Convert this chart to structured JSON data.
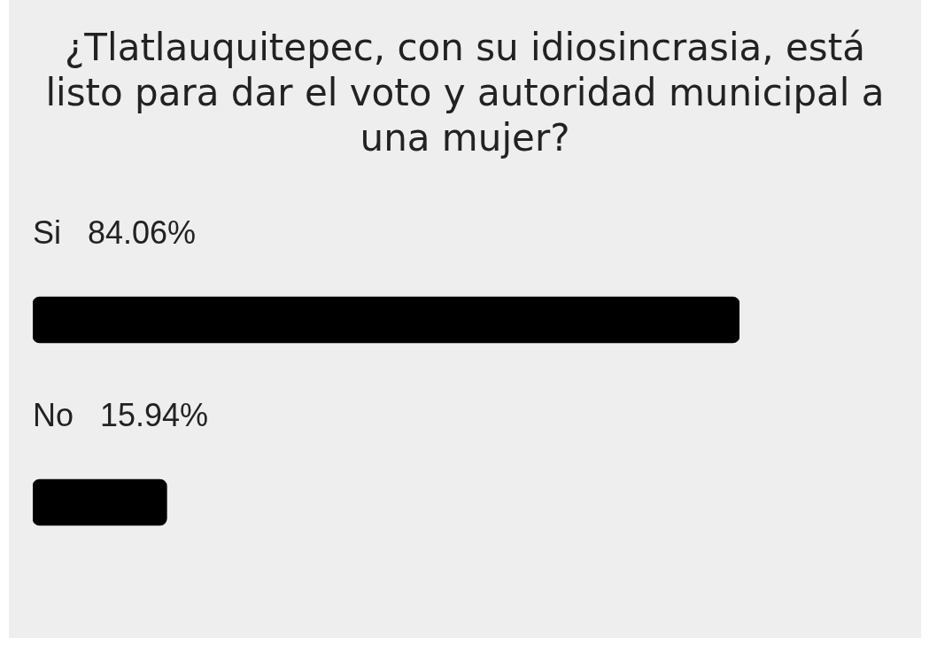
{
  "chart_data": {
    "type": "bar",
    "orientation": "horizontal",
    "title": "¿Tlatlauquitepec, con su idiosincrasia, está listo para dar el voto y autoridad municipal a una mujer?",
    "categories": [
      "Si",
      "No"
    ],
    "values": [
      84.06,
      15.94
    ],
    "value_labels": [
      "84.06%",
      "15.94%"
    ],
    "color": "#000000",
    "tick_labels": false
  }
}
